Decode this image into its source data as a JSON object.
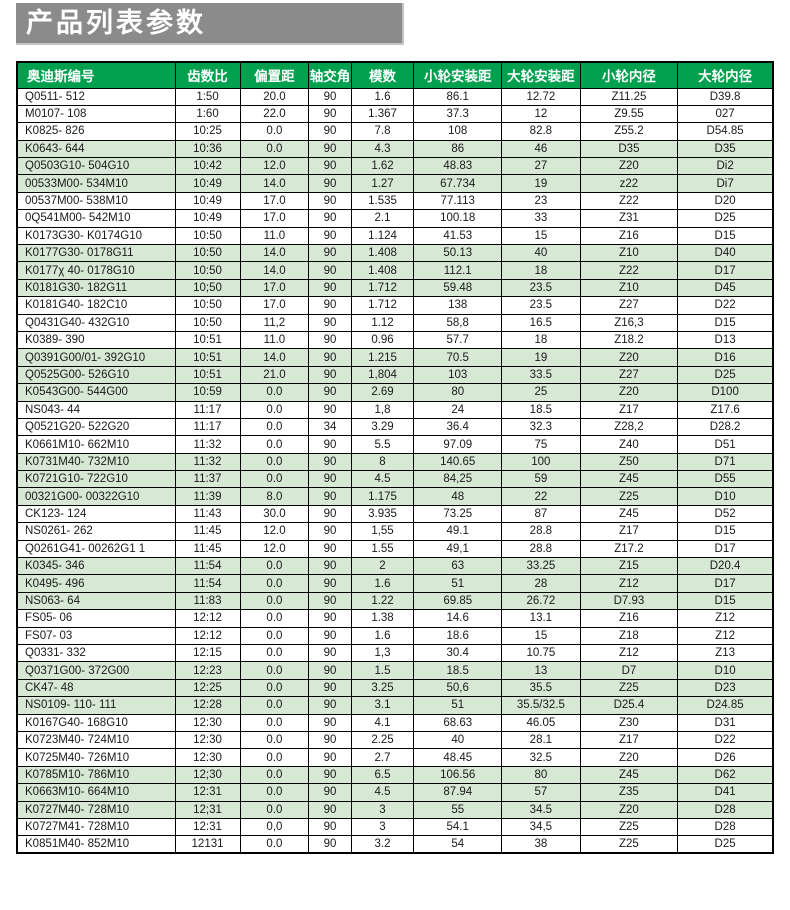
{
  "title": "产品列表参数",
  "colors": {
    "title_bg": "#8b8b8b",
    "header_bg": "#00a04e",
    "alt_row_bg": "#d7e8d5",
    "border": "#000000"
  },
  "table": {
    "headers": [
      "奥迪斯编号",
      "齿数比",
      "偏置距",
      "轴交角",
      "模数",
      "小轮安装距",
      "大轮安装距",
      "小轮内径",
      "大轮内径"
    ],
    "col_widths_pct": [
      20.9,
      8.6,
      9.1,
      5.6,
      8.3,
      11.6,
      10.4,
      12.9,
      12.6
    ],
    "alt_group_size": 3,
    "rows": [
      [
        "Q0511- 512",
        "1:50",
        "20.0",
        "90",
        "1.6",
        "86.1",
        "12.72",
        "Z11.25",
        "D39.8"
      ],
      [
        "M0107- 108",
        "1:60",
        "22.0",
        "90",
        "1.367",
        "37.3",
        "12",
        "Z9.55",
        "027"
      ],
      [
        "K0825- 826",
        "10:25",
        "0.0",
        "90",
        "7.8",
        "108",
        "82.8",
        "Z55.2",
        "D54.85"
      ],
      [
        "K0643- 644",
        "10:36",
        "0.0",
        "90",
        "4.3",
        "86",
        "46",
        "D35",
        "D35"
      ],
      [
        "Q0503G10- 504G10",
        "10:42",
        "12.0",
        "90",
        "1.62",
        "48.83",
        "27",
        "Z20",
        "Di2"
      ],
      [
        "00533M00- 534M10",
        "10:49",
        "14.0",
        "90",
        "1.27",
        "67.734",
        "19",
        "z22",
        "Di7"
      ],
      [
        "00537M00- 538M10",
        "10:49",
        "17.0",
        "90",
        "1.535",
        "77.113",
        "23",
        "Z22",
        "D20"
      ],
      [
        "0Q541M00- 542M10",
        "10:49",
        "17.0",
        "90",
        "2.1",
        "100.18",
        "33",
        "Z31",
        "D25"
      ],
      [
        "K0173G30- K0174G10",
        "10:50",
        "11.0",
        "90",
        "1.124",
        "41.53",
        "15",
        "Z16",
        "D15"
      ],
      [
        "K0177G30- 0178G11",
        "10:50",
        "14.0",
        "90",
        "1.408",
        "50.13",
        "40",
        "Z10",
        "D40"
      ],
      [
        "K0177χ 40- 0178G10",
        "10:50",
        "14.0",
        "90",
        "1.408",
        "112.1",
        "18",
        "Z22",
        "D17"
      ],
      [
        "K0181G30- 182G11",
        "10;50",
        "17.0",
        "90",
        "1.712",
        "59.48",
        "23.5",
        "Z10",
        "D45"
      ],
      [
        "K0181G40- 182C10",
        "10:50",
        "17.0",
        "90",
        "1.712",
        "138",
        "23.5",
        "Z27",
        "D22"
      ],
      [
        "Q0431G40- 432G10",
        "10:50",
        "11,2",
        "90",
        "1.12",
        "58,8",
        "16.5",
        "Z16,3",
        "D15"
      ],
      [
        "K0389- 390",
        "10:51",
        "11.0",
        "90",
        "0.96",
        "57.7",
        "18",
        "Z18.2",
        "D13"
      ],
      [
        "Q0391G00/01- 392G10",
        "10:51",
        "14.0",
        "90",
        "1.215",
        "70.5",
        "19",
        "Z20",
        "D16"
      ],
      [
        "Q0525G00- 526G10",
        "10:51",
        "21.0",
        "90",
        "1,804",
        "103",
        "33.5",
        "Z27",
        "D25"
      ],
      [
        "K0543G00- 544G00",
        "10:59",
        "0.0",
        "90",
        "2.69",
        "80",
        "25",
        "Z20",
        "D100"
      ],
      [
        "NS043- 44",
        "11:17",
        "0.0",
        "90",
        "1,8",
        "24",
        "18.5",
        "Z17",
        "Z17.6"
      ],
      [
        "Q0521G20- 522G20",
        "11:17",
        "0.0",
        "34",
        "3.29",
        "36.4",
        "32.3",
        "Z28,2",
        "D28.2"
      ],
      [
        "K0661M10- 662M10",
        "11:32",
        "0.0",
        "90",
        "5.5",
        "97.09",
        "75",
        "Z40",
        "D51"
      ],
      [
        "K0731M40- 732M10",
        "11:32",
        "0.0",
        "90",
        "8",
        "140.65",
        "100",
        "Z50",
        "D71"
      ],
      [
        "K0721G10- 722G10",
        "11:37",
        "0.0",
        "90",
        "4.5",
        "84,25",
        "59",
        "Z45",
        "D55"
      ],
      [
        "00321G00- 00322G10",
        "11:39",
        "8.0",
        "90",
        "1.175",
        "48",
        "22",
        "Z25",
        "D10"
      ],
      [
        "CK123- 124",
        "11:43",
        "30.0",
        "90",
        "3.935",
        "73.25",
        "87",
        "Z45",
        "D52"
      ],
      [
        "NS0261- 262",
        "11:45",
        "12.0",
        "90",
        "1,55",
        "49.1",
        "28.8",
        "Z17",
        "D15"
      ],
      [
        "Q0261G41- 00262G1 1",
        "11:45",
        "12.0",
        "90",
        "1.55",
        "49,1",
        "28.8",
        "Z17.2",
        "D17"
      ],
      [
        "K0345- 346",
        "11:54",
        "0.0",
        "90",
        "2",
        "63",
        "33.25",
        "Z15",
        "D20.4"
      ],
      [
        "K0495- 496",
        "11:54",
        "0.0",
        "90",
        "1.6",
        "51",
        "28",
        "Z12",
        "D17"
      ],
      [
        "NS063- 64",
        "11:83",
        "0.0",
        "90",
        "1.22",
        "69.85",
        "26.72",
        "D7.93",
        "D15"
      ],
      [
        "FS05- 06",
        "12:12",
        "0.0",
        "90",
        "1.38",
        "14.6",
        "13.1",
        "Z16",
        "Z12"
      ],
      [
        "FS07- 03",
        "12:12",
        "0.0",
        "90",
        "1.6",
        "18.6",
        "15",
        "Z18",
        "Z12"
      ],
      [
        "Q0331- 332",
        "12:15",
        "0.0",
        "90",
        "1,3",
        "30.4",
        "10.75",
        "Z12",
        "Z13"
      ],
      [
        "Q0371G00- 372G00",
        "12:23",
        "0.0",
        "90",
        "1.5",
        "18.5",
        "13",
        "D7",
        "D10"
      ],
      [
        "CK47- 48",
        "12:25",
        "0.0",
        "90",
        "3.25",
        "50,6",
        "35.5",
        "Z25",
        "D23"
      ],
      [
        "NS0109- 110- 111",
        "12:28",
        "0.0",
        "90",
        "3.1",
        "51",
        "35.5/32.5",
        "D25.4",
        "D24.85"
      ],
      [
        "K0167G40- 168G10",
        "12:30",
        "0.0",
        "90",
        "4.1",
        "68.63",
        "46.05",
        "Z30",
        "D31"
      ],
      [
        "K0723M40- 724M10",
        "12:30",
        "0.0",
        "90",
        "2.25",
        "40",
        "28.1",
        "Z17",
        "D22"
      ],
      [
        "K0725M40- 726M10",
        "12:30",
        "0.0",
        "90",
        "2.7",
        "48.45",
        "32.5",
        "Z20",
        "D26"
      ],
      [
        "K0785M10- 786M10",
        "12;30",
        "0.0",
        "90",
        "6.5",
        "106.56",
        "80",
        "Z45",
        "D62"
      ],
      [
        "K0663M10- 664M10",
        "12:31",
        "0.0",
        "90",
        "4.5",
        "87.94",
        "57",
        "Z35",
        "D41"
      ],
      [
        "K0727M40- 728M10",
        "12;31",
        "0.0",
        "90",
        "3",
        "55",
        "34.5",
        "Z20",
        "D28"
      ],
      [
        "K0727M41- 728M10",
        "12:31",
        "0,0",
        "90",
        "3",
        "54.1",
        "34,5",
        "Z25",
        "D28"
      ],
      [
        "K0851M40- 852M10",
        "12131",
        "0.0",
        "90",
        "3.2",
        "54",
        "38",
        "Z25",
        "D25"
      ]
    ]
  }
}
